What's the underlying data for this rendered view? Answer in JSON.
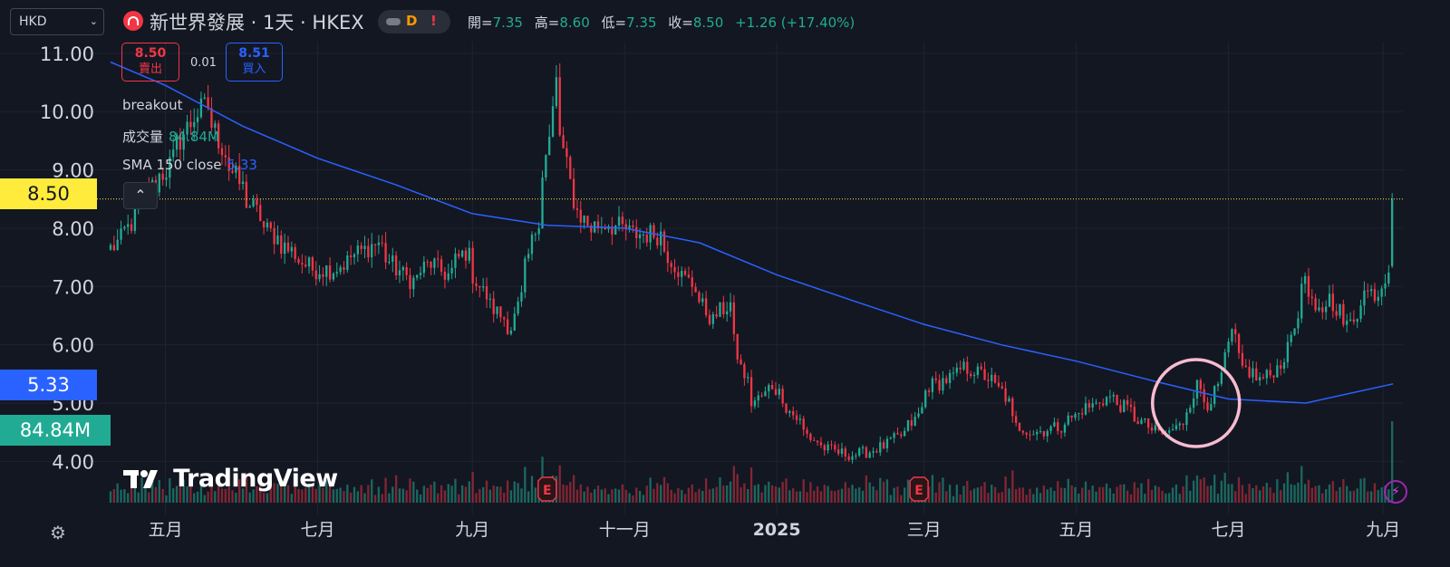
{
  "toolbar": {
    "currency": "HKD",
    "symbol_title": "新世界發展 · 1天 · HKEX",
    "interval_badge": "D",
    "alert_badge": "!"
  },
  "ohlc": {
    "open_label": "開=",
    "open": "7.35",
    "high_label": "高=",
    "high": "8.60",
    "low_label": "低=",
    "low": "7.35",
    "close_label": "收=",
    "close": "8.50",
    "change": "+1.26 (+17.40%)"
  },
  "trade": {
    "sell_price": "8.50",
    "sell_label": "賣出",
    "spread": "0.01",
    "buy_price": "8.51",
    "buy_label": "買入"
  },
  "legend": {
    "strategy": "breakout",
    "volume_label": "成交量",
    "volume_value": "84.84M",
    "sma_label": "SMA 150 close",
    "sma_value": "5.33"
  },
  "badges": {
    "price": "8.50",
    "sma": "5.33",
    "volume": "84.84M"
  },
  "watermark": "TradingView",
  "earnings_marker": "E",
  "colors": {
    "background": "#131722",
    "up": "#22ab94",
    "down": "#f23645",
    "sma": "#2962ff",
    "price_badge": "#ffeb3b",
    "volume_badge": "#22ab94",
    "highlight_circle": "#f8bbd0"
  },
  "chart_data": {
    "type": "candlestick",
    "y_ticks": [
      "11.00",
      "10.00",
      "9.00",
      "8.00",
      "7.00",
      "6.00",
      "5.00",
      "4.00"
    ],
    "y_range": [
      3.4,
      11.2
    ],
    "x_labels": [
      {
        "label": "五月",
        "date": "2024-05-01"
      },
      {
        "label": "七月",
        "date": "2024-07-01"
      },
      {
        "label": "九月",
        "date": "2024-09-01"
      },
      {
        "label": "十一月",
        "date": "2024-11-01"
      },
      {
        "label": "2025",
        "date": "2025-01-01"
      },
      {
        "label": "三月",
        "date": "2025-03-01"
      },
      {
        "label": "五月",
        "date": "2025-05-01"
      },
      {
        "label": "七月",
        "date": "2025-07-01"
      },
      {
        "label": "九月",
        "date": "2025-09-01"
      }
    ],
    "x_range": [
      "2024-04-09",
      "2025-09-06"
    ],
    "price_anchors": [
      [
        "2024-04-09",
        7.65
      ],
      [
        "2024-04-16",
        8.0
      ],
      [
        "2024-04-23",
        8.6
      ],
      [
        "2024-05-01",
        9.0
      ],
      [
        "2024-05-10",
        9.8
      ],
      [
        "2024-05-17",
        10.1
      ],
      [
        "2024-05-24",
        9.3
      ],
      [
        "2024-06-01",
        8.6
      ],
      [
        "2024-06-10",
        8.0
      ],
      [
        "2024-06-20",
        7.6
      ],
      [
        "2024-06-28",
        7.3
      ],
      [
        "2024-07-08",
        7.3
      ],
      [
        "2024-07-18",
        7.6
      ],
      [
        "2024-07-25",
        7.75
      ],
      [
        "2024-08-01",
        7.3
      ],
      [
        "2024-08-08",
        7.1
      ],
      [
        "2024-08-15",
        7.4
      ],
      [
        "2024-08-22",
        7.2
      ],
      [
        "2024-08-29",
        7.6
      ],
      [
        "2024-09-05",
        6.9
      ],
      [
        "2024-09-12",
        6.5
      ],
      [
        "2024-09-17",
        6.3
      ],
      [
        "2024-09-23",
        7.3
      ],
      [
        "2024-09-27",
        8.2
      ],
      [
        "2024-10-02",
        9.5
      ],
      [
        "2024-10-04",
        10.5
      ],
      [
        "2024-10-08",
        9.3
      ],
      [
        "2024-10-11",
        8.5
      ],
      [
        "2024-10-18",
        8.0
      ],
      [
        "2024-10-25",
        8.1
      ],
      [
        "2024-11-05",
        7.9
      ],
      [
        "2024-11-15",
        7.9
      ],
      [
        "2024-11-22",
        7.3
      ],
      [
        "2024-11-29",
        7.0
      ],
      [
        "2024-12-06",
        6.4
      ],
      [
        "2024-12-13",
        6.7
      ],
      [
        "2024-12-18",
        5.6
      ],
      [
        "2024-12-23",
        5.0
      ],
      [
        "2024-12-31",
        5.3
      ],
      [
        "2025-01-08",
        4.8
      ],
      [
        "2025-01-15",
        4.4
      ],
      [
        "2025-01-22",
        4.2
      ],
      [
        "2025-02-01",
        4.1
      ],
      [
        "2025-02-10",
        4.2
      ],
      [
        "2025-02-19",
        4.4
      ],
      [
        "2025-02-26",
        4.7
      ],
      [
        "2025-03-04",
        5.3
      ],
      [
        "2025-03-11",
        5.4
      ],
      [
        "2025-03-18",
        5.6
      ],
      [
        "2025-03-25",
        5.5
      ],
      [
        "2025-04-02",
        5.2
      ],
      [
        "2025-04-08",
        4.6
      ],
      [
        "2025-04-15",
        4.5
      ],
      [
        "2025-04-25",
        4.6
      ],
      [
        "2025-05-05",
        4.9
      ],
      [
        "2025-05-15",
        5.1
      ],
      [
        "2025-05-22",
        4.9
      ],
      [
        "2025-05-30",
        4.6
      ],
      [
        "2025-06-06",
        4.45
      ],
      [
        "2025-06-12",
        4.6
      ],
      [
        "2025-06-16",
        4.9
      ],
      [
        "2025-06-19",
        5.3
      ],
      [
        "2025-06-24",
        5.0
      ],
      [
        "2025-06-30",
        5.5
      ],
      [
        "2025-07-03",
        6.2
      ],
      [
        "2025-07-08",
        5.6
      ],
      [
        "2025-07-15",
        5.4
      ],
      [
        "2025-07-22",
        5.6
      ],
      [
        "2025-07-29",
        6.3
      ],
      [
        "2025-08-01",
        7.2
      ],
      [
        "2025-08-06",
        6.5
      ],
      [
        "2025-08-12",
        6.8
      ],
      [
        "2025-08-19",
        6.3
      ],
      [
        "2025-08-26",
        6.9
      ],
      [
        "2025-09-01",
        6.9
      ],
      [
        "2025-09-04",
        7.35
      ],
      [
        "2025-09-05",
        8.5
      ]
    ],
    "sma_150": [
      [
        "2024-04-09",
        10.85
      ],
      [
        "2024-05-01",
        10.45
      ],
      [
        "2024-06-01",
        9.75
      ],
      [
        "2024-07-01",
        9.2
      ],
      [
        "2024-08-01",
        8.75
      ],
      [
        "2024-09-01",
        8.25
      ],
      [
        "2024-10-01",
        8.05
      ],
      [
        "2024-11-01",
        8.0
      ],
      [
        "2024-12-01",
        7.75
      ],
      [
        "2025-01-01",
        7.2
      ],
      [
        "2025-02-01",
        6.75
      ],
      [
        "2025-03-01",
        6.35
      ],
      [
        "2025-04-01",
        6.0
      ],
      [
        "2025-05-01",
        5.72
      ],
      [
        "2025-06-01",
        5.38
      ],
      [
        "2025-07-01",
        5.07
      ],
      [
        "2025-08-01",
        5.0
      ],
      [
        "2025-09-05",
        5.33
      ]
    ],
    "volume_max": 84.84,
    "earnings_dates": [
      "2024-10-01",
      "2025-02-27"
    ],
    "highlight_circle": {
      "date": "2025-06-18",
      "price": 5.0
    },
    "last_price": 8.5,
    "sma_last": 5.33,
    "grid": true
  }
}
